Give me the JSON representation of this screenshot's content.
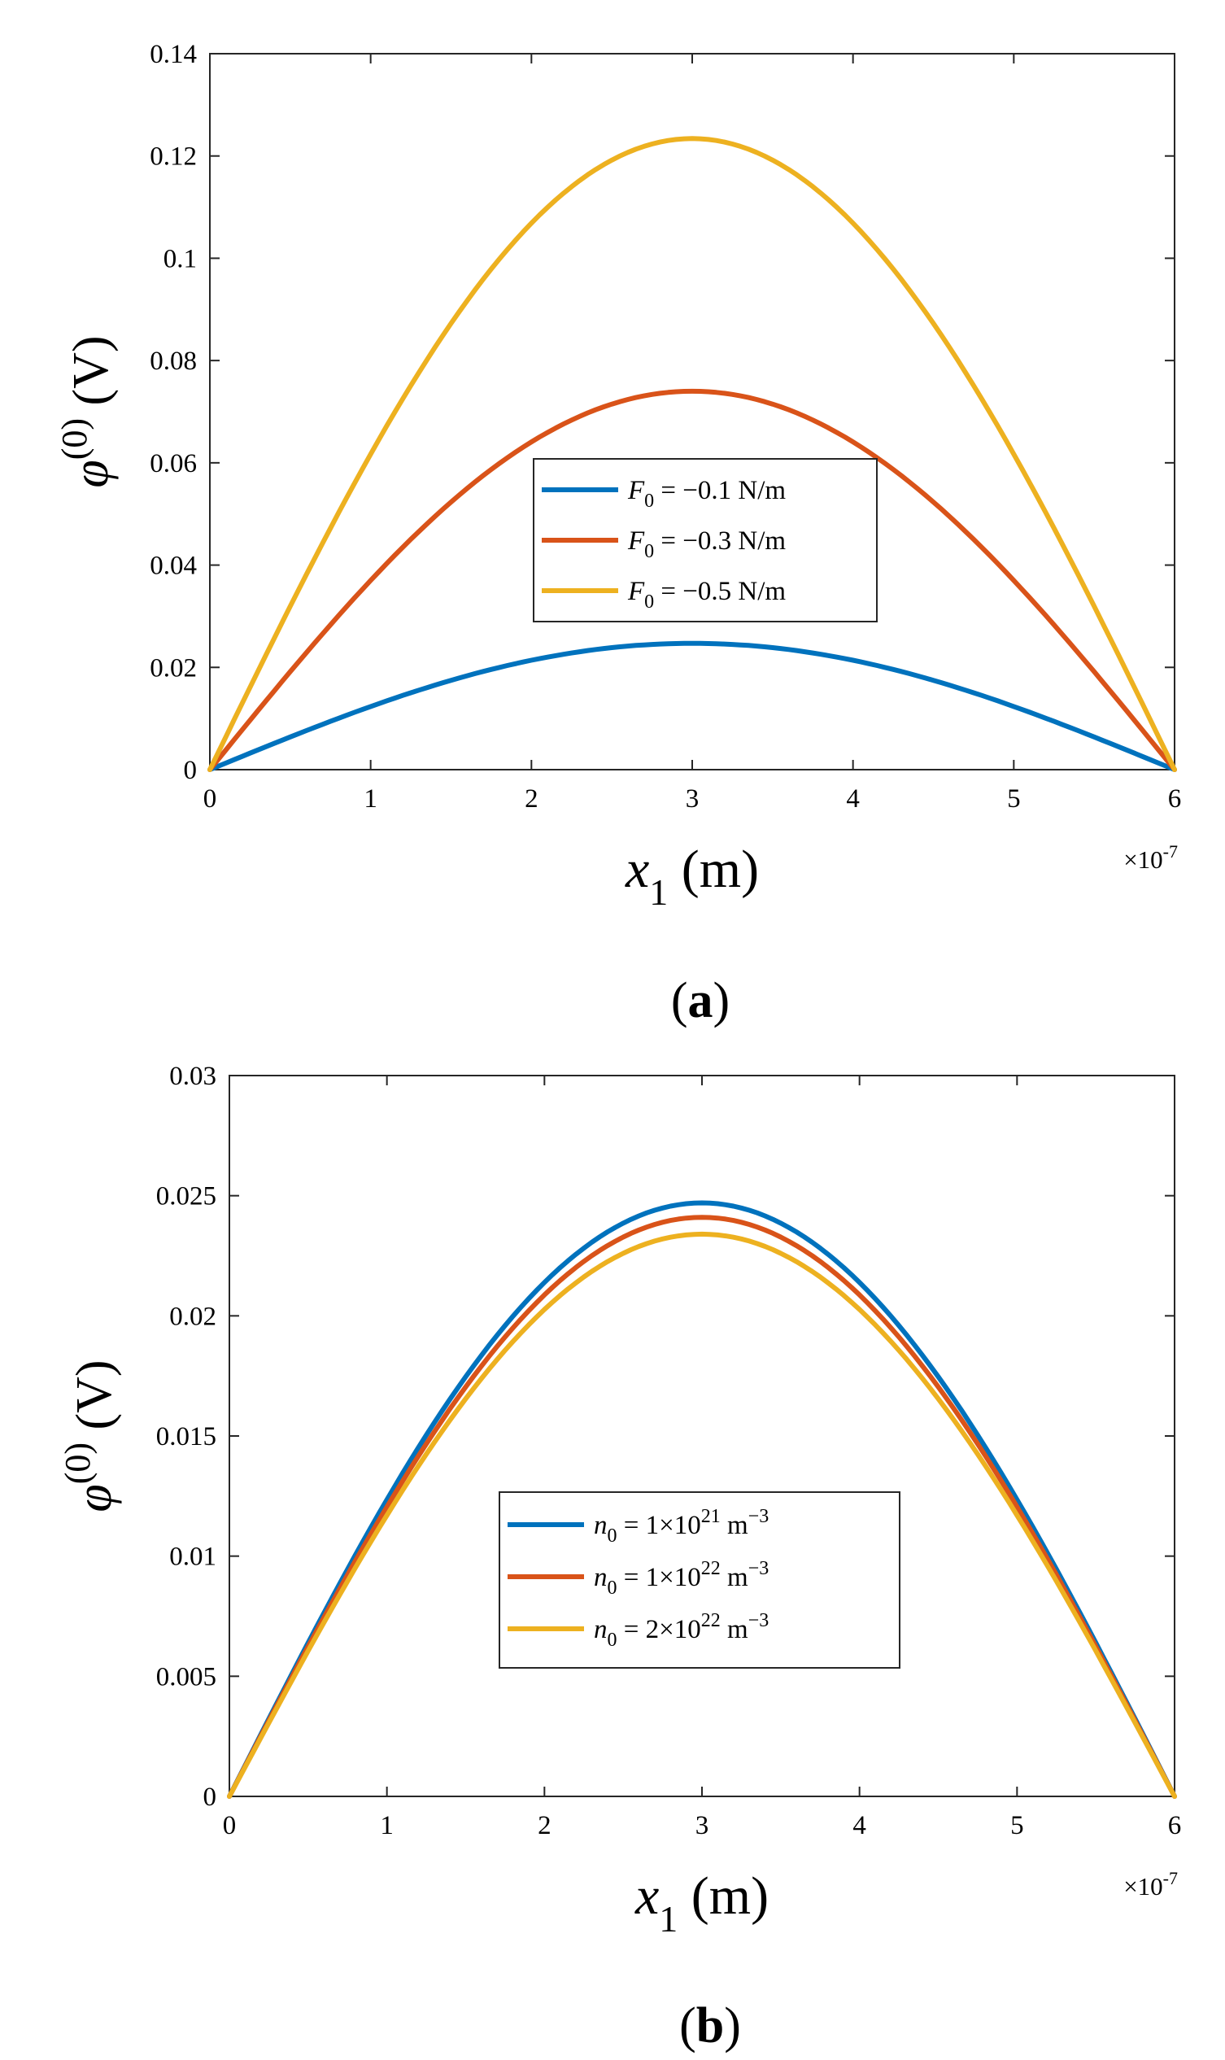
{
  "colors": {
    "blue": "#0072BD",
    "orange": "#D95319",
    "yellow": "#EDB120"
  },
  "chart_data": [
    {
      "type": "line",
      "panel": "a",
      "caption": {
        "open": "(",
        "letter": "a",
        "close": ")"
      },
      "xlabel": {
        "var": "x",
        "sub": "1",
        "unit": " (m)"
      },
      "ylabel": {
        "var": "φ",
        "sup": "(0)",
        "unit": " (V)"
      },
      "x_multiplier": {
        "base": "×10",
        "exp": "-7"
      },
      "xlim": [
        0,
        6
      ],
      "ylim": [
        0,
        0.14
      ],
      "x_ticks": [
        0,
        1,
        2,
        3,
        4,
        5,
        6
      ],
      "x_tick_labels": [
        "0",
        "1",
        "2",
        "3",
        "4",
        "5",
        "6"
      ],
      "y_ticks": [
        0,
        0.02,
        0.04,
        0.06,
        0.08,
        0.1,
        0.12,
        0.14
      ],
      "y_tick_labels": [
        "0",
        "0.02",
        "0.04",
        "0.06",
        "0.08",
        "0.1",
        "0.12",
        "0.14"
      ],
      "legend_position": "center",
      "series": [
        {
          "name": "F0 = −0.1 N/m",
          "legend": {
            "var": "F",
            "sub": "0",
            "text": " = −0.1 N/m"
          },
          "color": "#0072BD",
          "peak": 0.0247,
          "x": [
            0,
            1,
            2,
            3,
            4,
            5,
            6
          ],
          "values": [
            0,
            0.0137,
            0.0219,
            0.0247,
            0.0219,
            0.0137,
            0
          ]
        },
        {
          "name": "F0 = −0.3 N/m",
          "legend": {
            "var": "F",
            "sub": "0",
            "text": " = −0.3 N/m"
          },
          "color": "#D95319",
          "peak": 0.074,
          "x": [
            0,
            1,
            2,
            3,
            4,
            5,
            6
          ],
          "values": [
            0,
            0.0411,
            0.0658,
            0.074,
            0.0658,
            0.0411,
            0
          ]
        },
        {
          "name": "F0 = −0.5 N/m",
          "legend": {
            "var": "F",
            "sub": "0",
            "text": " = −0.5 N/m"
          },
          "color": "#EDB120",
          "peak": 0.1234,
          "x": [
            0,
            1,
            2,
            3,
            4,
            5,
            6
          ],
          "values": [
            0,
            0.0686,
            0.1097,
            0.1234,
            0.1097,
            0.0686,
            0
          ]
        }
      ]
    },
    {
      "type": "line",
      "panel": "b",
      "caption": {
        "open": "(",
        "letter": "b",
        "close": ")"
      },
      "xlabel": {
        "var": "x",
        "sub": "1",
        "unit": " (m)"
      },
      "ylabel": {
        "var": "φ",
        "sup": "(0)",
        "unit": " (V)"
      },
      "x_multiplier": {
        "base": "×10",
        "exp": "-7"
      },
      "xlim": [
        0,
        6
      ],
      "ylim": [
        0,
        0.03
      ],
      "x_ticks": [
        0,
        1,
        2,
        3,
        4,
        5,
        6
      ],
      "x_tick_labels": [
        "0",
        "1",
        "2",
        "3",
        "4",
        "5",
        "6"
      ],
      "y_ticks": [
        0,
        0.005,
        0.01,
        0.015,
        0.02,
        0.025,
        0.03
      ],
      "y_tick_labels": [
        "0",
        "0.005",
        "0.01",
        "0.015",
        "0.02",
        "0.025",
        "0.03"
      ],
      "legend_position": "bottom-center",
      "series": [
        {
          "name": "n0 = 1×10^21 m^-3",
          "legend": {
            "var": "n",
            "sub": "0",
            "text": " = 1×10",
            "sup1": "21",
            "text2": " m",
            "sup2": "−3"
          },
          "color": "#0072BD",
          "peak": 0.0247,
          "x": [
            0,
            1,
            2,
            3,
            4,
            5,
            6
          ],
          "values": [
            0,
            0.0137,
            0.0219,
            0.0247,
            0.0219,
            0.0137,
            0
          ]
        },
        {
          "name": "n0 = 1×10^22 m^-3",
          "legend": {
            "var": "n",
            "sub": "0",
            "text": " = 1×10",
            "sup1": "22",
            "text2": " m",
            "sup2": "−3"
          },
          "color": "#D95319",
          "peak": 0.0241,
          "x": [
            0,
            1,
            2,
            3,
            4,
            5,
            6
          ],
          "values": [
            0,
            0.0134,
            0.0214,
            0.0241,
            0.0214,
            0.0134,
            0
          ]
        },
        {
          "name": "n0 = 2×10^22 m^-3",
          "legend": {
            "var": "n",
            "sub": "0",
            "text": " = 2×10",
            "sup1": "22",
            "text2": " m",
            "sup2": "−3"
          },
          "color": "#EDB120",
          "peak": 0.0234,
          "x": [
            0,
            1,
            2,
            3,
            4,
            5,
            6
          ],
          "values": [
            0,
            0.013,
            0.0208,
            0.0234,
            0.0208,
            0.013,
            0
          ]
        }
      ]
    }
  ]
}
